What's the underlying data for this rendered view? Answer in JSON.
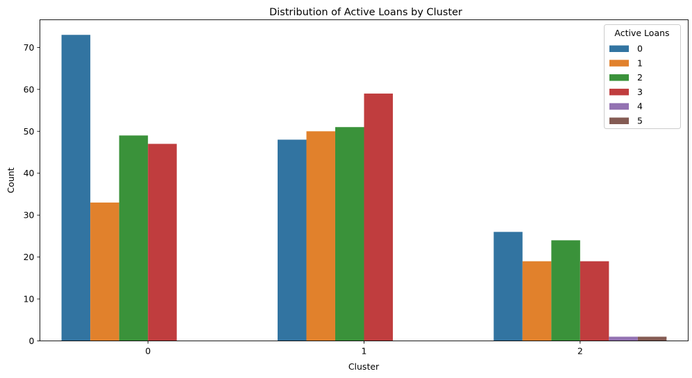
{
  "chart_data": {
    "type": "bar",
    "title": "Distribution of Active Loans by Cluster",
    "xlabel": "Cluster",
    "ylabel": "Count",
    "categories": [
      "0",
      "1",
      "2"
    ],
    "ylim": [
      0,
      76.6
    ],
    "yticks": [
      0,
      10,
      20,
      30,
      40,
      50,
      60,
      70
    ],
    "grid": false,
    "legend": {
      "title": "Active Loans",
      "placement": "top-right"
    },
    "series": [
      {
        "name": "0",
        "color": "#3274a1",
        "values": [
          73,
          48,
          26
        ]
      },
      {
        "name": "1",
        "color": "#e1812c",
        "values": [
          33,
          50,
          19
        ]
      },
      {
        "name": "2",
        "color": "#3a923a",
        "values": [
          49,
          51,
          24
        ]
      },
      {
        "name": "3",
        "color": "#c03d3e",
        "values": [
          47,
          59,
          19
        ]
      },
      {
        "name": "4",
        "color": "#9372b2",
        "values": [
          0,
          0,
          1
        ]
      },
      {
        "name": "5",
        "color": "#845b53",
        "values": [
          0,
          0,
          1
        ]
      }
    ]
  }
}
